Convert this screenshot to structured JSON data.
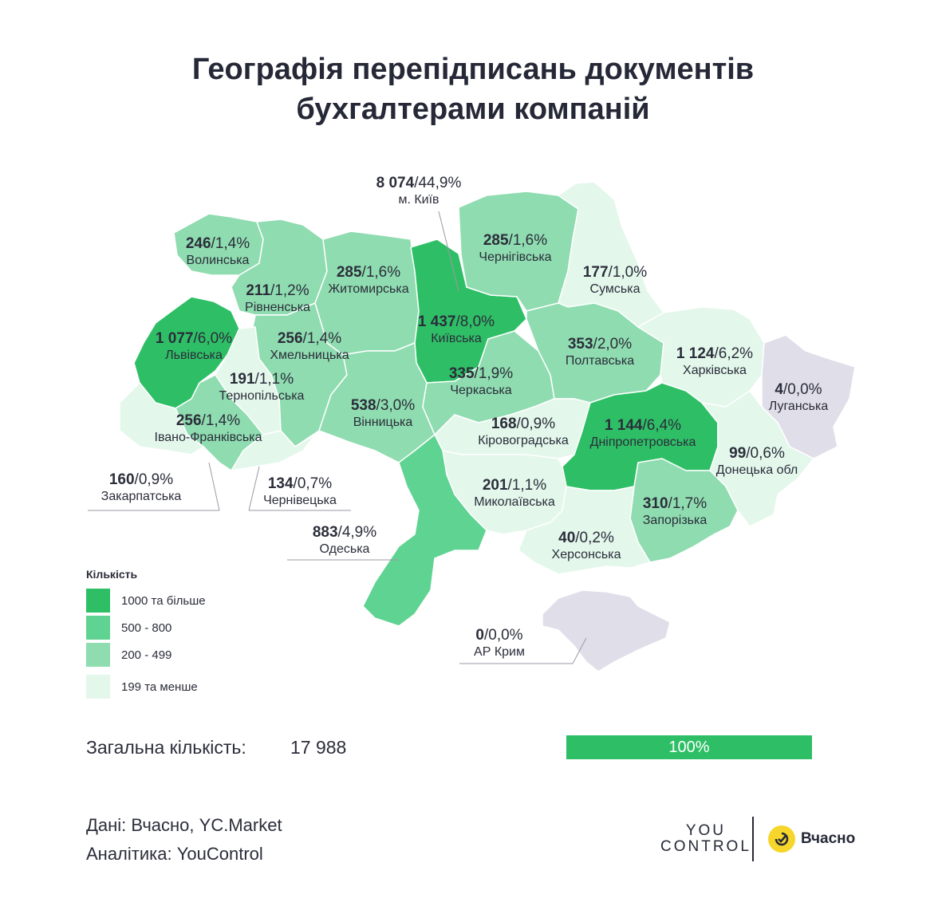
{
  "title_line1": "Географія перепідписань документів",
  "title_line2": "бухгалтерами компаній",
  "colors": {
    "c1000": "#2ebf66",
    "c500": "#5fd391",
    "c200": "#8fdcb0",
    "c199": "#e3f7eb",
    "none": "#e0dee9"
  },
  "regions": [
    {
      "id": "kyiv_city",
      "value": "8 074",
      "pct": "/44,9%",
      "name": "м. Київ"
    },
    {
      "id": "volyn",
      "value": "246",
      "pct": "/1,4%",
      "name": "Волинська"
    },
    {
      "id": "rivne",
      "value": "211",
      "pct": "/1,2%",
      "name": "Рівненська"
    },
    {
      "id": "zhytomyr",
      "value": "285",
      "pct": "/1,6%",
      "name": "Житомирська"
    },
    {
      "id": "chernihiv",
      "value": "285",
      "pct": "/1,6%",
      "name": "Чернігівська"
    },
    {
      "id": "sumy",
      "value": "177",
      "pct": "/1,0%",
      "name": "Сумська"
    },
    {
      "id": "lviv",
      "value": "1 077",
      "pct": "/6,0%",
      "name": "Львівська"
    },
    {
      "id": "khmelnytskyi",
      "value": "256",
      "pct": "/1,4%",
      "name": "Хмельницька"
    },
    {
      "id": "kyiv_obl",
      "value": "1 437",
      "pct": "/8,0%",
      "name": "Київська"
    },
    {
      "id": "poltava",
      "value": "353",
      "pct": "/2,0%",
      "name": "Полтавська"
    },
    {
      "id": "kharkiv",
      "value": "1 124",
      "pct": "/6,2%",
      "name": "Харківська"
    },
    {
      "id": "luhansk",
      "value": "4",
      "pct": "/0,0%",
      "name": "Луганська"
    },
    {
      "id": "ternopil",
      "value": "191",
      "pct": "/1,1%",
      "name": "Тернопільська"
    },
    {
      "id": "cherkasy",
      "value": "335",
      "pct": "/1,9%",
      "name": "Черкаська"
    },
    {
      "id": "vinnytsia",
      "value": "538",
      "pct": "/3,0%",
      "name": "Вінницька"
    },
    {
      "id": "ivano_frankivsk",
      "value": "256",
      "pct": "/1,4%",
      "name": "Івано-Франківська"
    },
    {
      "id": "kirovohrad",
      "value": "168",
      "pct": "/0,9%",
      "name": "Кіровоградська"
    },
    {
      "id": "dnipro",
      "value": "1 144",
      "pct": "/6,4%",
      "name": "Дніпропетровська"
    },
    {
      "id": "donetsk",
      "value": "99",
      "pct": "/0,6%",
      "name": "Донецька обл"
    },
    {
      "id": "zakarpattia",
      "value": "160",
      "pct": "/0,9%",
      "name": "Закарпатська"
    },
    {
      "id": "chernivtsi",
      "value": "134",
      "pct": "/0,7%",
      "name": "Чернівецька"
    },
    {
      "id": "mykolaiv",
      "value": "201",
      "pct": "/1,1%",
      "name": "Миколаївська"
    },
    {
      "id": "zaporizhzhia",
      "value": "310",
      "pct": "/1,7%",
      "name": "Запорізька"
    },
    {
      "id": "odesa",
      "value": "883",
      "pct": "/4,9%",
      "name": "Одеська"
    },
    {
      "id": "kherson",
      "value": "40",
      "pct": "/0,2%",
      "name": "Херсонська"
    },
    {
      "id": "crimea",
      "value": "0",
      "pct": "/0,0%",
      "name": "АР Крим"
    }
  ],
  "legend": {
    "title": "Кількість",
    "items": [
      "1000 та більше",
      "500 - 800",
      "200 - 499",
      "199 та менше"
    ]
  },
  "total": {
    "label": "Загальна кількість:",
    "value": "17 988",
    "bar_label": "100%"
  },
  "source_line1": "Дані: Вчасно, YC.Market",
  "source_line2": "Аналітика: YouControl",
  "logo_yc_line1": "YOU",
  "logo_yc_line2": "CONTROL",
  "logo_vchasno": "Вчасно"
}
